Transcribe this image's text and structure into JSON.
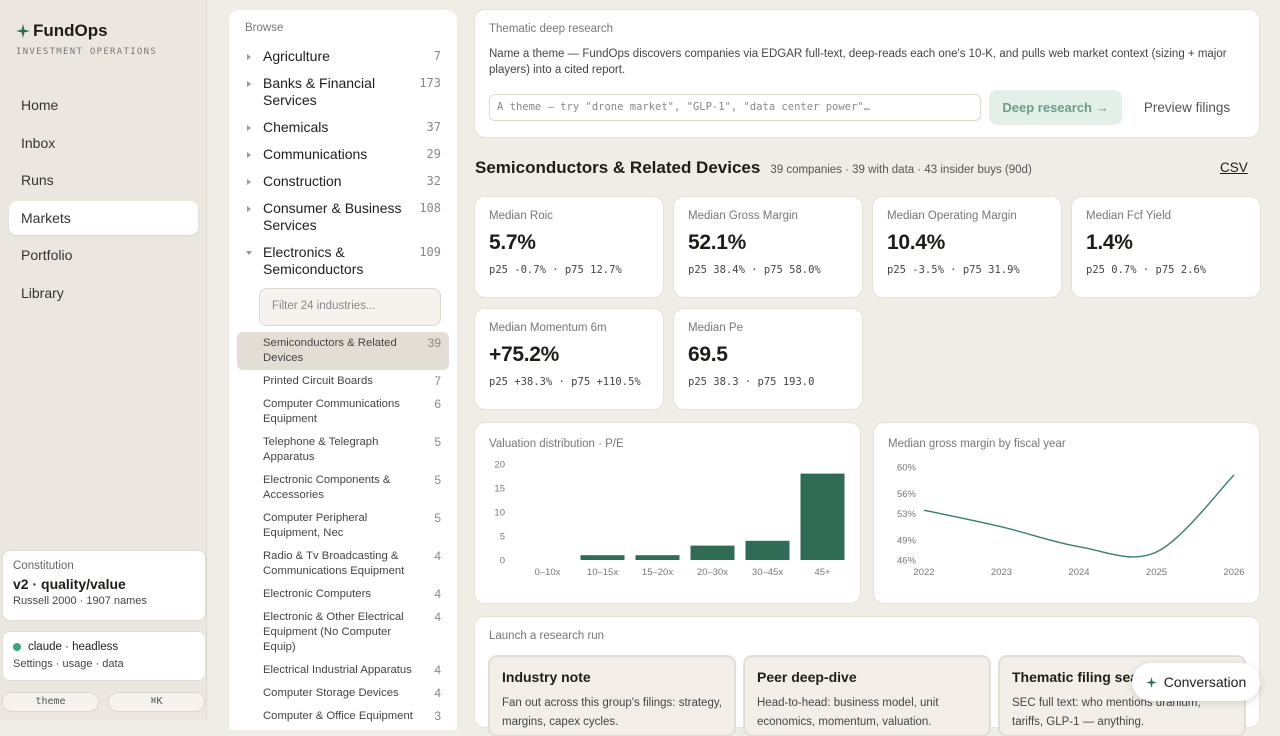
{
  "sidebar": {
    "brand": "FundOps",
    "tagline": "INVESTMENT OPERATIONS",
    "nav": [
      "Home",
      "Inbox",
      "Runs",
      "Markets",
      "Portfolio",
      "Library"
    ],
    "active": "Markets",
    "constitution": {
      "label": "Constitution",
      "name": "v2 · quality/value",
      "universe": "Russell 2000 · 1907 names"
    },
    "status": {
      "label": "claude · headless",
      "links": "Settings · usage · data"
    },
    "buttons": [
      "theme",
      "⌘K"
    ]
  },
  "browse": {
    "title": "Browse",
    "sectors": [
      {
        "name": "Agriculture",
        "count": 7
      },
      {
        "name": "Banks & Financial Services",
        "count": 173
      },
      {
        "name": "Chemicals",
        "count": 37
      },
      {
        "name": "Communications",
        "count": 29
      },
      {
        "name": "Construction",
        "count": 32
      },
      {
        "name": "Consumer & Business Services",
        "count": 108
      },
      {
        "name": "Electronics & Semiconductors",
        "count": 109,
        "expanded": true,
        "filter_placeholder": "Filter 24 industries...",
        "industries": [
          {
            "name": "Semiconductors & Related Devices",
            "count": 39,
            "selected": true
          },
          {
            "name": "Printed Circuit Boards",
            "count": 7
          },
          {
            "name": "Computer Communications Equipment",
            "count": 6
          },
          {
            "name": "Telephone & Telegraph Apparatus",
            "count": 5
          },
          {
            "name": "Electronic Components & Accessories",
            "count": 5
          },
          {
            "name": "Computer Peripheral Equipment, Nec",
            "count": 5
          },
          {
            "name": "Radio & Tv Broadcasting & Communications Equipment",
            "count": 4
          },
          {
            "name": "Electronic Computers",
            "count": 4
          },
          {
            "name": "Electronic & Other Electrical Equipment (No Computer Equip)",
            "count": 4
          },
          {
            "name": "Electrical Industrial Apparatus",
            "count": 4
          },
          {
            "name": "Computer Storage Devices",
            "count": 4
          },
          {
            "name": "Computer & Office Equipment",
            "count": 3
          }
        ]
      }
    ]
  },
  "research": {
    "title": "Thematic deep research",
    "description": "Name a theme — FundOps discovers companies via EDGAR full-text, deep-reads each one's 10-K, and pulls web market context (sizing + major players) into a cited report.",
    "placeholder": "A theme — try \"drone market\", \"GLP-1\", \"data center power\"…",
    "primary": "Deep research →",
    "secondary": "Preview filings"
  },
  "group": {
    "title": "Semiconductors & Related Devices",
    "meta": "39 companies · 39 with data · 43 insider buys (90d)",
    "export": "CSV"
  },
  "metrics": [
    {
      "label": "Median Roic",
      "value": "5.7%",
      "range": "p25 -0.7% · p75 12.7%"
    },
    {
      "label": "Median Gross Margin",
      "value": "52.1%",
      "range": "p25 38.4% · p75 58.0%"
    },
    {
      "label": "Median Operating Margin",
      "value": "10.4%",
      "range": "p25 -3.5% · p75 31.9%"
    },
    {
      "label": "Median Fcf Yield",
      "value": "1.4%",
      "range": "p25 0.7% · p75 2.6%"
    },
    {
      "label": "Median Momentum 6m",
      "value": "+75.2%",
      "range": "p25 +38.3% · p75 +110.5%"
    },
    {
      "label": "Median Pe",
      "value": "69.5",
      "range": "p25 38.3 · p75 193.0"
    }
  ],
  "chart_data": [
    {
      "type": "bar",
      "title": "Valuation distribution · P/E",
      "categories": [
        "0–10x",
        "10–15x",
        "15–20x",
        "20–30x",
        "30–45x",
        "45+"
      ],
      "values": [
        0,
        1,
        1,
        3,
        4,
        18
      ],
      "color": "#2f6b55",
      "ylim": [
        0,
        20
      ],
      "yticks": [
        0,
        5,
        10,
        15,
        20
      ]
    },
    {
      "type": "line",
      "title": "Median gross margin by fiscal year",
      "x": [
        2022,
        2023,
        2024,
        2025,
        2026
      ],
      "values": [
        53.5,
        51,
        48,
        47.2,
        58.8
      ],
      "color": "#3d7d66",
      "xlim": [
        2022,
        2026
      ],
      "xticks": [
        2022,
        2023,
        2024,
        2025,
        2026
      ],
      "ylim": [
        46,
        60
      ],
      "yticks": [
        {
          "value": 46,
          "label": "46%"
        },
        {
          "value": 49,
          "label": "49%"
        },
        {
          "value": 53,
          "label": "53%"
        },
        {
          "value": 56,
          "label": "56%"
        },
        {
          "value": 60,
          "label": "60%"
        }
      ]
    }
  ],
  "launch": {
    "title": "Launch a research run",
    "cards": [
      {
        "title": "Industry note",
        "text": "Fan out across this group's filings: strategy, margins, capex cycles."
      },
      {
        "title": "Peer deep-dive",
        "text": "Head-to-head: business model, unit economics, momentum, valuation."
      },
      {
        "title": "Thematic filing search",
        "text": "SEC full text: who mentions uranium, tariffs, GLP-1 — anything."
      }
    ]
  },
  "conversation": "Conversation"
}
